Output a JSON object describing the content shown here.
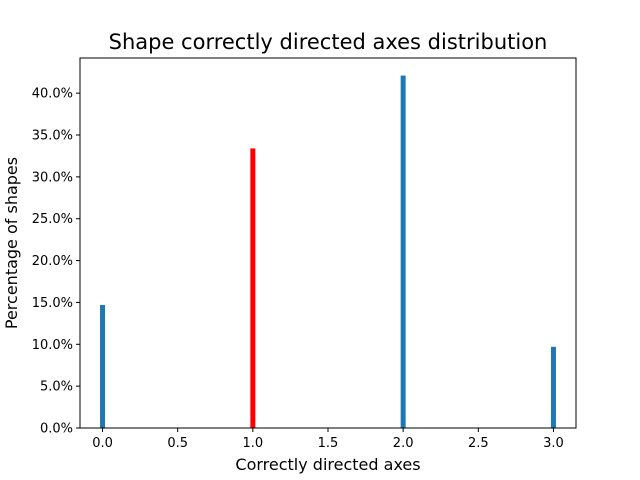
{
  "chart_data": {
    "type": "bar",
    "title": "Shape correctly directed axes distribution",
    "xlabel": "Correctly directed axes",
    "ylabel": "Percentage of shapes",
    "x": [
      0,
      1,
      2,
      3
    ],
    "values": [
      14.7,
      33.4,
      42.1,
      9.7
    ],
    "highlight_index": 1,
    "colors": {
      "default": "#1f77b4",
      "highlight": "#ff0000"
    },
    "xlim": [
      -0.15,
      3.15
    ],
    "ylim": [
      0,
      44.2
    ],
    "xticks": [
      0,
      0.5,
      1,
      1.5,
      2,
      2.5,
      3
    ],
    "xtick_labels": [
      "0.0",
      "0.5",
      "1.0",
      "1.5",
      "2.0",
      "2.5",
      "3.0"
    ],
    "yticks": [
      0,
      5,
      10,
      15,
      20,
      25,
      30,
      35,
      40
    ],
    "ytick_labels": [
      "0.0%",
      "5.0%",
      "10.0%",
      "15.0%",
      "20.0%",
      "25.0%",
      "30.0%",
      "35.0%",
      "40.0%"
    ],
    "grid": false,
    "legend": "none"
  }
}
